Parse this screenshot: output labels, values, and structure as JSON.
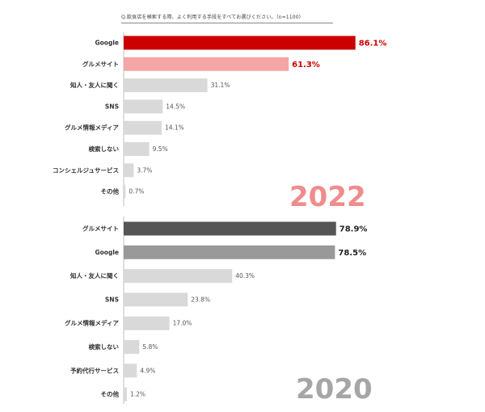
{
  "question": "Q.飲食店を検索する際、よく利用する手段をすべてお選びください。（n=1100）",
  "colors": {
    "red": "#cc0000",
    "pink": "#f4a6a6",
    "dark": "#555555",
    "mid": "#999999",
    "light": "#d9d9d9",
    "year2022": "#f08c8c",
    "year2020": "#a6a6a6"
  },
  "chart_data": [
    {
      "type": "bar",
      "orientation": "horizontal",
      "title": "2022",
      "categories": [
        "Google",
        "グルメサイト",
        "知人・友人に聞く",
        "SNS",
        "グルメ情報メディア",
        "検索しない",
        "コンシェルジュサービス",
        "その他"
      ],
      "values": [
        86.1,
        61.3,
        31.1,
        14.5,
        14.1,
        9.5,
        3.7,
        0.7
      ],
      "labels": [
        "86.1%",
        "61.3%",
        "31.1%",
        "14.5%",
        "14.1%",
        "9.5%",
        "3.7%",
        "0.7%"
      ],
      "bar_colors": [
        "red",
        "pink",
        "light",
        "light",
        "light",
        "light",
        "light",
        "light"
      ],
      "xlim": [
        0,
        100
      ]
    },
    {
      "type": "bar",
      "orientation": "horizontal",
      "title": "2020",
      "categories": [
        "グルメサイト",
        "Google",
        "知人・友人に聞く",
        "SNS",
        "グルメ情報メディア",
        "検索しない",
        "予約代行サービス",
        "その他"
      ],
      "values": [
        78.9,
        78.5,
        40.3,
        23.8,
        17.0,
        5.8,
        4.9,
        1.2
      ],
      "labels": [
        "78.9%",
        "78.5%",
        "40.3%",
        "23.8%",
        "17.0%",
        "5.8%",
        "4.9%",
        "1.2%"
      ],
      "bar_colors": [
        "dark",
        "mid",
        "light",
        "light",
        "light",
        "light",
        "light",
        "light"
      ],
      "xlim": [
        0,
        100
      ]
    }
  ]
}
